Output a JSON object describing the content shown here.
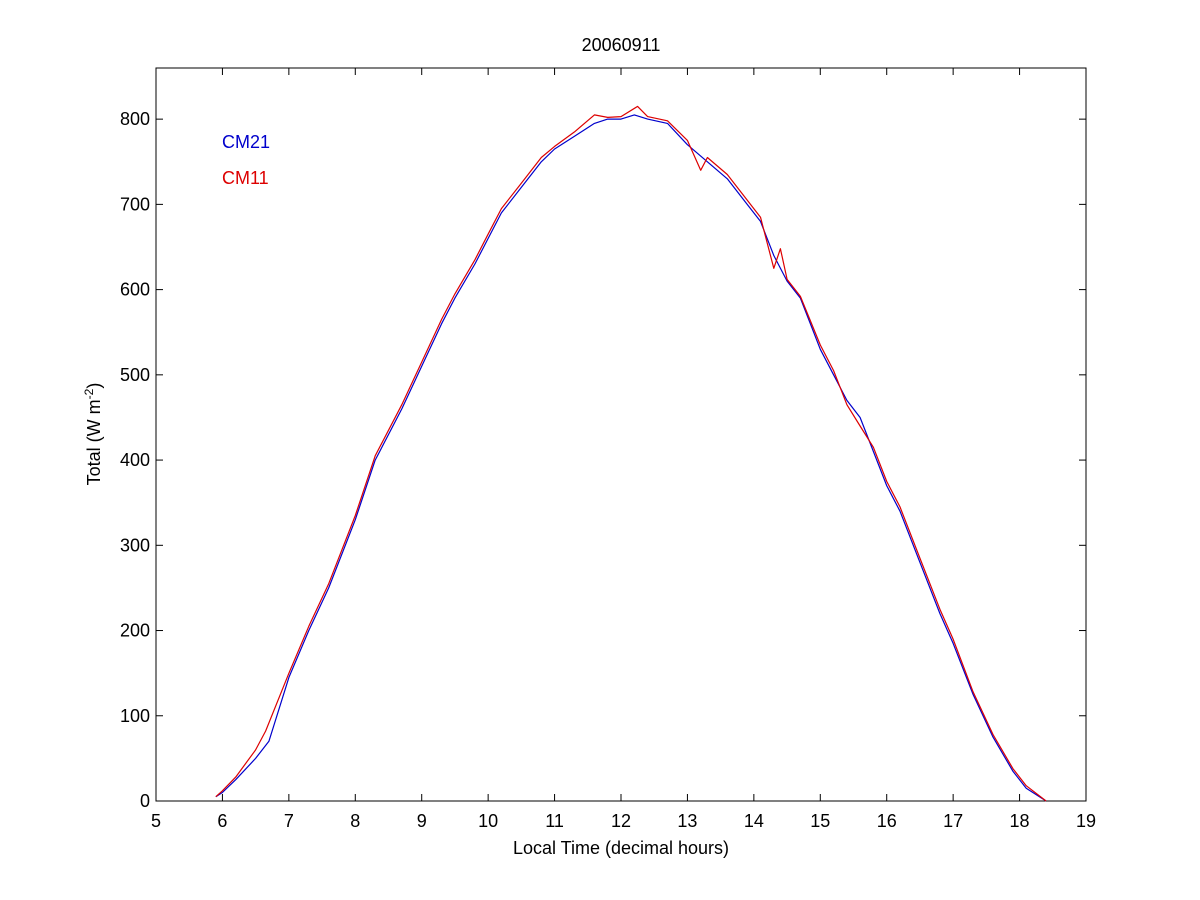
{
  "chart_data": {
    "type": "line",
    "title": "20060911",
    "xlabel": "Local Time (decimal hours)",
    "ylabel_main": "Total (W m",
    "ylabel_sup": "-2",
    "ylabel_close": ")",
    "xlim": [
      5,
      19
    ],
    "ylim": [
      0,
      860
    ],
    "xticks": [
      5,
      6,
      7,
      8,
      9,
      10,
      11,
      12,
      13,
      14,
      15,
      16,
      17,
      18,
      19
    ],
    "xtick_labels": [
      "5",
      "6",
      "7",
      "8",
      "9",
      "10",
      "11",
      "12",
      "13",
      "14",
      "15",
      "16",
      "17",
      "18",
      "19"
    ],
    "yticks": [
      0,
      100,
      200,
      300,
      400,
      500,
      600,
      700,
      800
    ],
    "ytick_labels": [
      "0",
      "100",
      "200",
      "300",
      "400",
      "500",
      "600",
      "700",
      "800"
    ],
    "grid": false,
    "legend_position": "top-left",
    "series": [
      {
        "name": "CM21",
        "color": "#0000cc",
        "x": [
          5.9,
          6.0,
          6.2,
          6.5,
          6.7,
          7.0,
          7.3,
          7.6,
          8.0,
          8.3,
          8.7,
          9.0,
          9.3,
          9.5,
          9.8,
          10.0,
          10.2,
          10.5,
          10.8,
          11.0,
          11.3,
          11.6,
          11.8,
          12.0,
          12.2,
          12.4,
          12.7,
          13.0,
          13.3,
          13.6,
          13.9,
          14.1,
          14.3,
          14.5,
          14.7,
          15.0,
          15.2,
          15.4,
          15.6,
          15.8,
          16.0,
          16.2,
          16.5,
          16.8,
          17.0,
          17.3,
          17.6,
          17.9,
          18.1,
          18.4
        ],
        "y": [
          5,
          10,
          25,
          50,
          70,
          145,
          200,
          250,
          330,
          400,
          460,
          510,
          560,
          590,
          630,
          660,
          690,
          720,
          750,
          765,
          780,
          795,
          800,
          800,
          805,
          800,
          795,
          770,
          750,
          730,
          700,
          680,
          640,
          610,
          590,
          530,
          500,
          470,
          450,
          410,
          370,
          340,
          280,
          220,
          185,
          125,
          75,
          35,
          15,
          0
        ]
      },
      {
        "name": "CM11",
        "color": "#dd0000",
        "x": [
          5.9,
          6.0,
          6.2,
          6.5,
          6.65,
          7.0,
          7.3,
          7.6,
          8.0,
          8.3,
          8.7,
          9.0,
          9.3,
          9.5,
          9.8,
          10.0,
          10.2,
          10.5,
          10.8,
          11.0,
          11.3,
          11.6,
          11.8,
          12.0,
          12.25,
          12.4,
          12.7,
          13.0,
          13.2,
          13.3,
          13.6,
          13.9,
          14.1,
          14.3,
          14.4,
          14.5,
          14.7,
          15.0,
          15.2,
          15.4,
          15.6,
          15.8,
          16.0,
          16.2,
          16.5,
          16.8,
          17.0,
          17.3,
          17.6,
          17.9,
          18.1,
          18.4
        ],
        "y": [
          5,
          12,
          28,
          60,
          82,
          150,
          205,
          255,
          335,
          405,
          465,
          515,
          565,
          595,
          635,
          665,
          695,
          725,
          755,
          768,
          785,
          805,
          802,
          803,
          815,
          803,
          798,
          775,
          740,
          755,
          735,
          705,
          685,
          625,
          648,
          612,
          592,
          535,
          505,
          465,
          440,
          415,
          375,
          345,
          285,
          225,
          190,
          128,
          78,
          38,
          18,
          0
        ]
      }
    ]
  }
}
